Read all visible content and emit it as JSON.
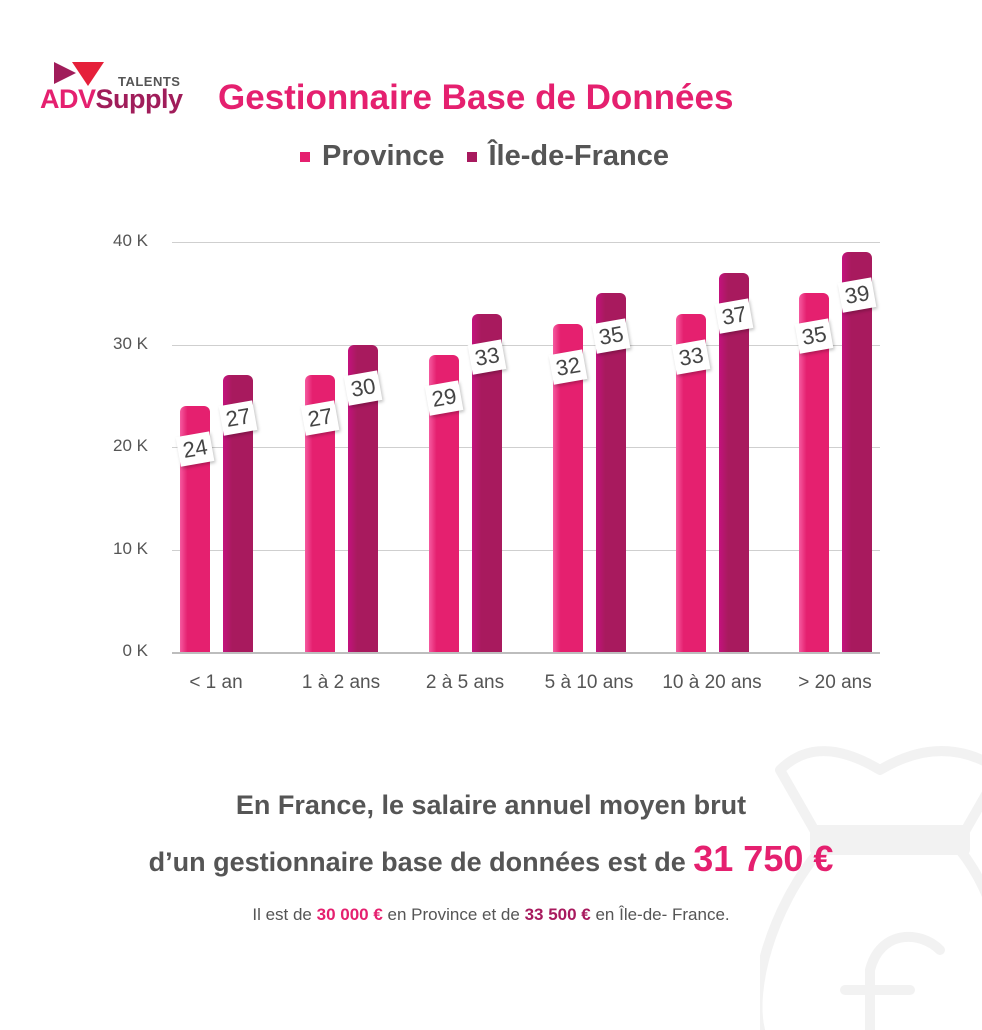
{
  "brand": {
    "talents": "TALENTS",
    "adv": "ADV",
    "supply": "Supply"
  },
  "title": "Gestionnaire Base de Données",
  "legend": [
    {
      "label": "Province",
      "color": "#e5206f"
    },
    {
      "label": "Île-de-France",
      "color": "#a81a5e"
    }
  ],
  "chart_data": {
    "type": "bar",
    "title": "Gestionnaire Base de Données",
    "categories": [
      "< 1 an",
      "1 à 2 ans",
      "2 à 5 ans",
      "5 à 10 ans",
      "10 à 20 ans",
      ">  20 ans"
    ],
    "series": [
      {
        "name": "Province",
        "values": [
          24,
          27,
          29,
          32,
          33,
          35
        ],
        "color": "#e5206f"
      },
      {
        "name": "Île-de-France",
        "values": [
          27,
          30,
          33,
          35,
          37,
          39
        ],
        "color": "#a81a5e"
      }
    ],
    "xlabel": "",
    "ylabel": "",
    "yticks": [
      "0 K",
      "10 K",
      "20 K",
      "30 K",
      "40 K"
    ],
    "ylim": [
      0,
      40
    ],
    "unit": "K €",
    "grid": true,
    "legend_position": "top"
  },
  "summary": {
    "line1": "En France, le salaire annuel moyen brut",
    "line2_prefix": "d’un gestionnaire base de données est de ",
    "average": "31 750 €",
    "line3_a": "Il est de ",
    "province_value": "30 000 €",
    "line3_b": " en Province et de ",
    "idf_value": "33 500 €",
    "line3_c": " en Île-de- France."
  }
}
